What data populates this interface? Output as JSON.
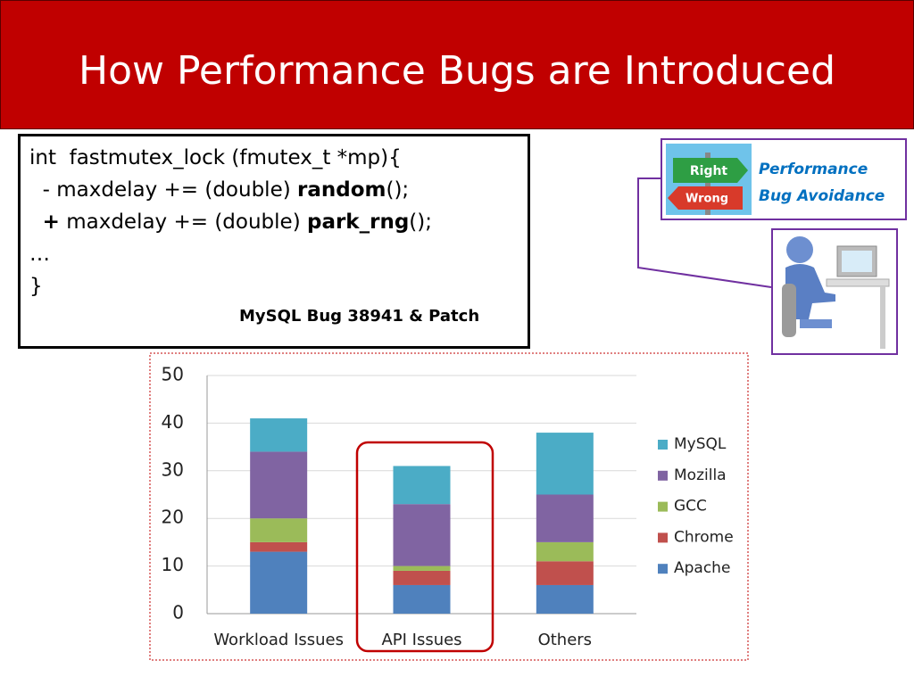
{
  "title": "How Performance Bugs are Introduced",
  "code": {
    "lines": [
      [
        "int  fastmutex_lock (fmutex_t *mp){"
      ],
      [
        "  - maxdelay += (double) ",
        "random",
        "();"
      ],
      [
        "  ",
        "+",
        " maxdelay += (double) ",
        "park_rng",
        "();"
      ],
      [
        "…"
      ],
      [
        "}"
      ]
    ]
  },
  "caption": "MySQL Bug 38941 & Patch",
  "callout": {
    "sign": [
      "Right",
      "Wrong"
    ],
    "text": [
      "Performance",
      "Bug Avoidance"
    ]
  },
  "chart_data": {
    "type": "stacked_bar",
    "categories": [
      "Workload Issues",
      "API Issues",
      "Others"
    ],
    "series": [
      {
        "name": "Apache",
        "color": "#4f81bd",
        "values": [
          13,
          6,
          6
        ]
      },
      {
        "name": "Chrome",
        "color": "#c0504d",
        "values": [
          2,
          3,
          5
        ]
      },
      {
        "name": "GCC",
        "color": "#9bbb59",
        "values": [
          5,
          1,
          4
        ]
      },
      {
        "name": "Mozilla",
        "color": "#8064a2",
        "values": [
          14,
          13,
          10
        ]
      },
      {
        "name": "MySQL",
        "color": "#4bacc6",
        "values": [
          7,
          8,
          13
        ]
      }
    ],
    "ylim": [
      0,
      50
    ],
    "yticks": [
      0,
      10,
      20,
      30,
      40,
      50
    ],
    "grid": true,
    "legend": "right"
  }
}
